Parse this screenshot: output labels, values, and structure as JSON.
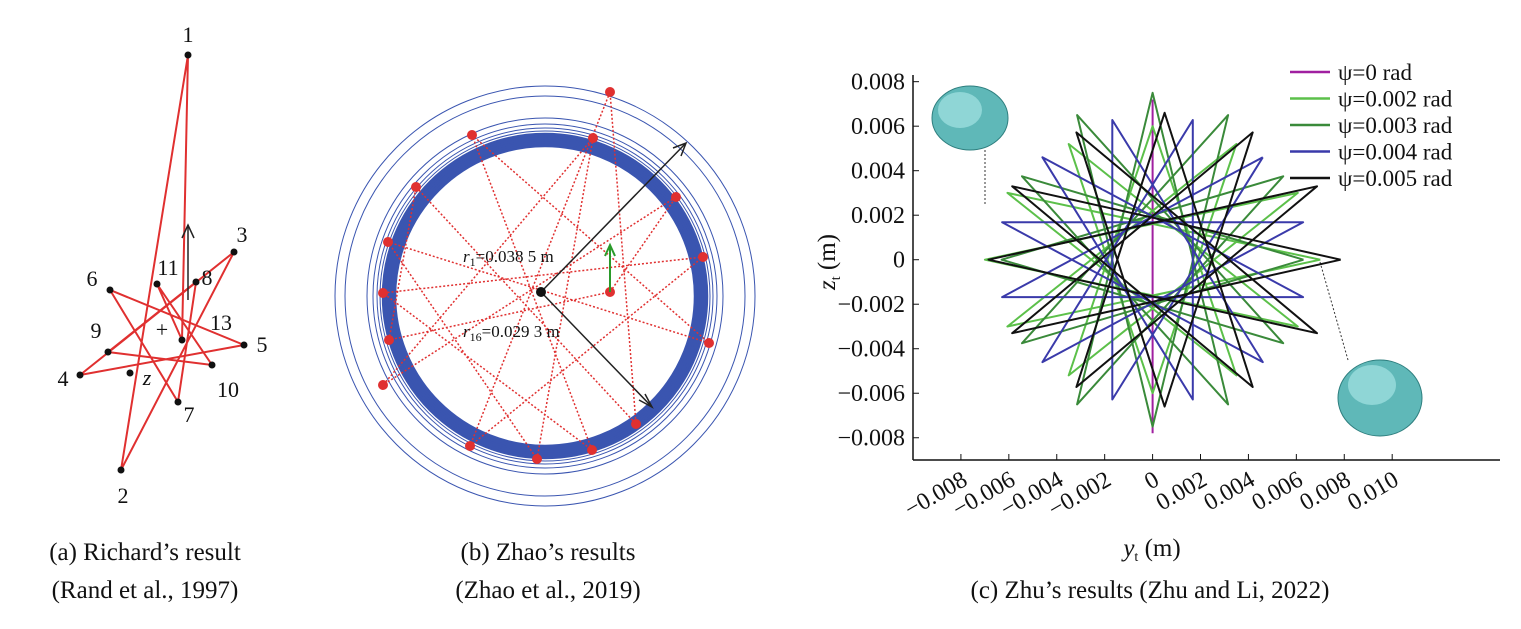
{
  "diagrams": {
    "a": {
      "labels": [
        "1",
        "2",
        "3",
        "4",
        "5",
        "6",
        "7",
        "8",
        "9",
        "10",
        "11",
        "13",
        "+",
        "z"
      ],
      "caption": [
        "(a) Richard’s result",
        "(Rand et al., 1997)"
      ]
    },
    "b": {
      "r1": {
        "symbol": "r",
        "subscript": "1",
        "text": "=0.038 5 m"
      },
      "r16": {
        "symbol": "r",
        "subscript": "16",
        "text": "=0.029 3 m"
      },
      "caption": [
        "(b) Zhao’s results",
        "(Zhao et al., 2019)"
      ]
    }
  },
  "chart_data": {
    "type": "line",
    "caption": "(c) Zhu’s results (Zhu and Li, 2022)",
    "x_label": {
      "symbol": "y",
      "subscript": "t",
      "unit": " (m)"
    },
    "y_label": {
      "symbol": "z",
      "subscript": "t",
      "unit": " (m)"
    },
    "xlim": [
      -0.01,
      0.0145
    ],
    "ylim": [
      -0.009,
      0.0083
    ],
    "xticks": [
      {
        "value": -0.008,
        "label": "−0.008"
      },
      {
        "value": -0.006,
        "label": "−0.006"
      },
      {
        "value": -0.004,
        "label": "−0.004"
      },
      {
        "value": -0.002,
        "label": "−0.002"
      },
      0,
      0.002,
      0.004,
      0.006,
      0.008,
      {
        "value": 0.01,
        "label": "0.010"
      }
    ],
    "yticks": [
      {
        "value": -0.008,
        "label": "−0.008"
      },
      {
        "value": -0.006,
        "label": "−0.006"
      },
      {
        "value": -0.004,
        "label": "−0.004"
      },
      {
        "value": -0.002,
        "label": "−0.002"
      },
      0,
      0.002,
      0.004,
      0.006,
      0.008
    ],
    "legend": "upper right",
    "series": [
      {
        "name": "ψ=0 rad",
        "color": "#a020a0",
        "x": [
          0,
          0
        ],
        "values": [
          -0.0078,
          0.0072
        ]
      },
      {
        "name": "ψ=0.002 rad",
        "color": "#5cc04a",
        "x": [
          0.007,
          -0.00606,
          0.0035,
          0,
          -0.0035,
          0.00606,
          -0.007,
          0.00606,
          -0.0035,
          0,
          0.0035,
          -0.00606,
          0.007
        ],
        "values": [
          0,
          0.003,
          -0.0052,
          0.006,
          -0.0052,
          0.003,
          0,
          -0.003,
          0.0052,
          -0.006,
          0.0052,
          -0.003,
          0
        ]
      },
      {
        "name": "ψ=0.003 rad",
        "color": "#3a8a3a",
        "x": [
          0.0063,
          -0.00545,
          0.00315,
          0,
          -0.00315,
          0.00545,
          -0.0063,
          0.00545,
          -0.00315,
          0,
          0.00315,
          -0.00545,
          0.0063
        ],
        "values": [
          0,
          0.00375,
          -0.0065,
          0.0075,
          -0.0065,
          0.00375,
          0,
          -0.00375,
          0.0065,
          -0.0075,
          0.0065,
          -0.00375,
          0
        ]
      },
      {
        "name": "ψ=0.004 rad",
        "color": "#3a3aaa",
        "x": [
          0.0046,
          -0.00628,
          0.00628,
          -0.0046,
          0.00168,
          0.00168,
          -0.0046,
          0.00628,
          -0.00628,
          0.0046,
          -0.00168,
          -0.00168,
          0.0046
        ],
        "values": [
          0.0046,
          -0.00168,
          -0.00168,
          0.0046,
          -0.00628,
          0.00628,
          -0.0046,
          0.00168,
          0.00168,
          -0.0046,
          0.00628,
          -0.00628,
          0.0046
        ]
      },
      {
        "name": "ψ=0.005 rad",
        "color": "#111111",
        "x": [
          0.00785,
          -0.00586,
          0.00418,
          0.0005,
          -0.00318,
          0.00686,
          -0.00685,
          0.00686,
          -0.00318,
          0.0005,
          0.00418,
          -0.00586,
          0.00785
        ],
        "values": [
          0,
          0.0033,
          -0.00572,
          0.0066,
          -0.00572,
          0.0033,
          0,
          -0.0033,
          0.00572,
          -0.0066,
          0.00572,
          -0.0033,
          0
        ]
      }
    ]
  }
}
